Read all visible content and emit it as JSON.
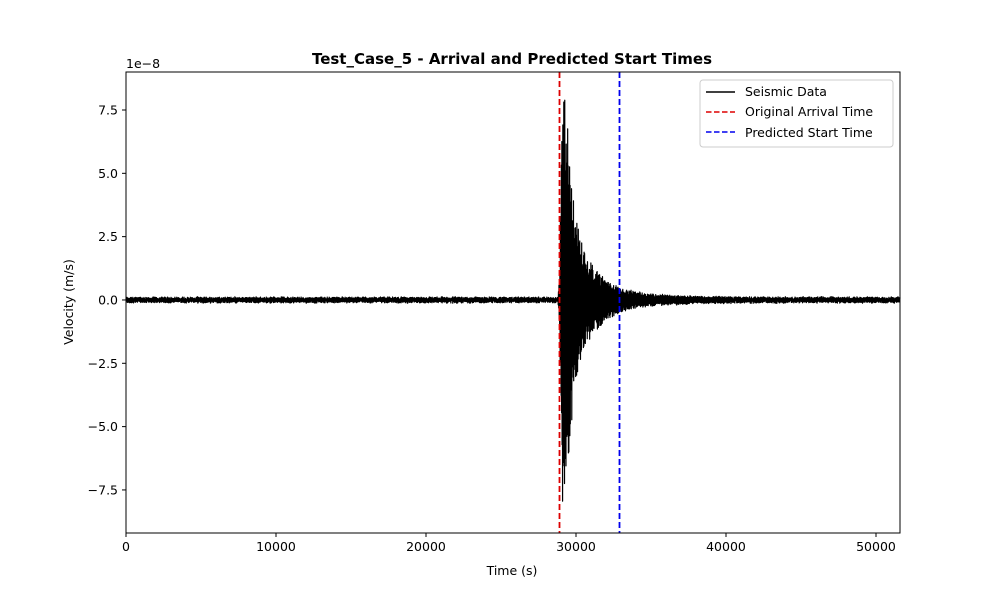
{
  "chart_data": {
    "type": "line",
    "title": "Test_Case_5 - Arrival and Predicted Start Times",
    "xlabel": "Time (s)",
    "ylabel": "Velocity (m/s)",
    "y_scale_note": "1e−8",
    "xlim": [
      0,
      51600
    ],
    "ylim": [
      -9.2,
      9.0
    ],
    "y_unit_multiplier": 1e-08,
    "xticks": [
      0,
      10000,
      20000,
      30000,
      40000,
      50000
    ],
    "yticks": [
      -7.5,
      -5.0,
      -2.5,
      0.0,
      2.5,
      5.0,
      7.5
    ],
    "xtick_labels": [
      "0",
      "10000",
      "20000",
      "30000",
      "40000",
      "50000"
    ],
    "ytick_labels": [
      "−7.5",
      "−5.0",
      "−2.5",
      "0.0",
      "2.5",
      "5.0",
      "7.5"
    ],
    "grid": false,
    "legend_position": "top-right",
    "series": [
      {
        "name": "Seismic Data",
        "style": "solid",
        "color": "#000000",
        "noise_amplitude": 0.08,
        "envelope": [
          [
            0,
            0.09
          ],
          [
            28800,
            0.09
          ],
          [
            28900,
            1.0
          ],
          [
            29100,
            8.0
          ],
          [
            29200,
            8.3
          ],
          [
            29300,
            8.2
          ],
          [
            29500,
            6.5
          ],
          [
            29800,
            4.2
          ],
          [
            30200,
            2.6
          ],
          [
            30700,
            1.8
          ],
          [
            31300,
            1.2
          ],
          [
            32000,
            0.8
          ],
          [
            33000,
            0.45
          ],
          [
            34000,
            0.3
          ],
          [
            35500,
            0.2
          ],
          [
            38000,
            0.13
          ],
          [
            42000,
            0.1
          ],
          [
            51600,
            0.09
          ]
        ]
      },
      {
        "name": "Original Arrival Time",
        "style": "dashed",
        "color": "#dd0000",
        "x": 28900
      },
      {
        "name": "Predicted Start Time",
        "style": "dashed",
        "color": "#0000ee",
        "x": 32900
      }
    ]
  }
}
